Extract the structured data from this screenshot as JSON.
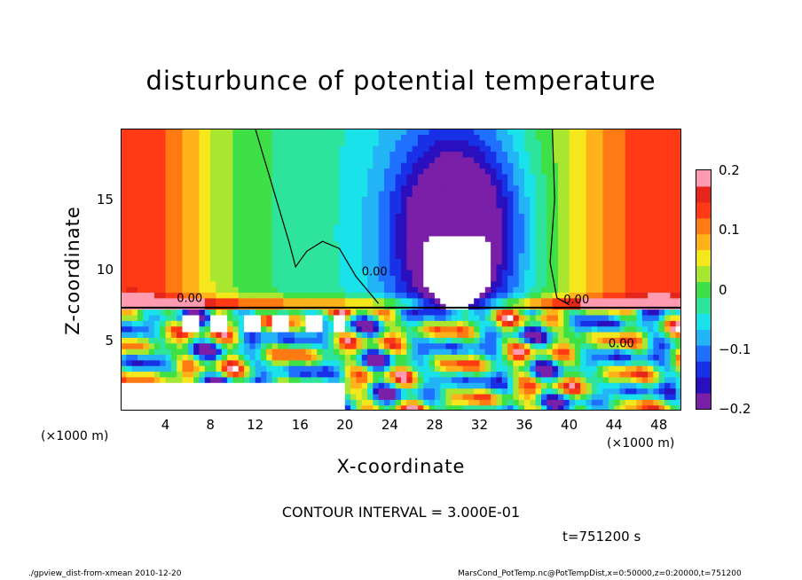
{
  "chart_data": {
    "type": "heatmap",
    "title": "disturbunce of potential temperature",
    "xlabel": "X-coordinate",
    "ylabel": "Z-coordinate",
    "x_unit": "(×1000 m)",
    "x_unit_right": "(×1000 m)",
    "y_unit": "(×1000 m)",
    "xlim": [
      0,
      50
    ],
    "ylim": [
      0,
      20
    ],
    "x_ticks": [
      4,
      8,
      12,
      16,
      20,
      24,
      28,
      32,
      36,
      40,
      44,
      48
    ],
    "y_ticks": [
      5,
      10,
      15
    ],
    "colorbar": {
      "range": [
        -0.2,
        0.2
      ],
      "ticks": [
        {
          "value": 0.2,
          "label": "0.2"
        },
        {
          "value": 0.1,
          "label": "0.1"
        },
        {
          "value": 0,
          "label": "0"
        },
        {
          "value": -0.1,
          "label": "−0.1"
        },
        {
          "value": -0.2,
          "label": "−0.2"
        }
      ],
      "colors": [
        "#7a1fa8",
        "#2a0fbf",
        "#1830e6",
        "#1f70ff",
        "#22b4f5",
        "#19e2ea",
        "#2ee49c",
        "#3ee047",
        "#a8e630",
        "#f4e81c",
        "#ffb21a",
        "#ff7a13",
        "#ff3a14",
        "#e5261b",
        "#ff9bb0"
      ]
    },
    "contour_labels": [
      "0.00",
      "0.00",
      "0.00",
      "0.00"
    ],
    "contour_interval_text": "CONTOUR INTERVAL = 3.000E-01",
    "features": {
      "inversion_height": 7.3,
      "warm_left": "x 0-6, z 8-20, value ~0.15",
      "warm_right": "x 40-50, z 8-20, value ~0.15",
      "cold_dome_center": [
        30,
        13
      ],
      "cold_dome_value": -0.2
    }
  },
  "time_text": "t=751200 s",
  "footer_left": "./gpview_dist-from-xmean  2010-12-20",
  "footer_right": "MarsCond_PotTemp.nc@PotTempDist,x=0:50000,z=0:20000,t=751200",
  "colors": {
    "background": "#ffffff",
    "frame": "#000000"
  }
}
